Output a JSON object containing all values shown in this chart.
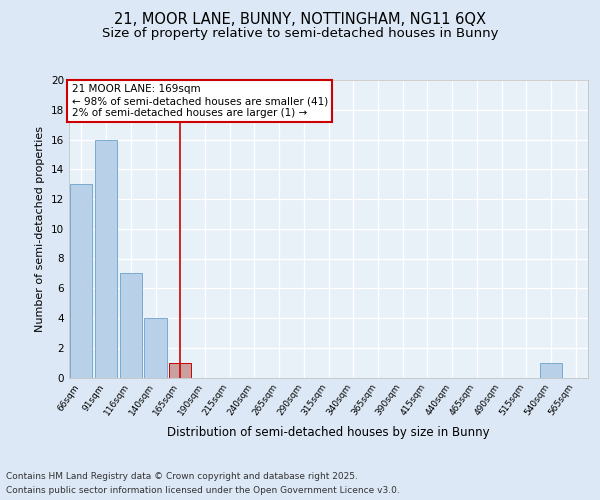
{
  "title1": "21, MOOR LANE, BUNNY, NOTTINGHAM, NG11 6QX",
  "title2": "Size of property relative to semi-detached houses in Bunny",
  "xlabel": "Distribution of semi-detached houses by size in Bunny",
  "ylabel": "Number of semi-detached properties",
  "footer1": "Contains HM Land Registry data © Crown copyright and database right 2025.",
  "footer2": "Contains public sector information licensed under the Open Government Licence v3.0.",
  "bin_labels": [
    "66sqm",
    "91sqm",
    "116sqm",
    "140sqm",
    "165sqm",
    "190sqm",
    "215sqm",
    "240sqm",
    "265sqm",
    "290sqm",
    "315sqm",
    "340sqm",
    "365sqm",
    "390sqm",
    "415sqm",
    "440sqm",
    "465sqm",
    "490sqm",
    "515sqm",
    "540sqm",
    "565sqm"
  ],
  "bar_values": [
    13,
    16,
    7,
    4,
    1,
    0,
    0,
    0,
    0,
    0,
    0,
    0,
    0,
    0,
    0,
    0,
    0,
    0,
    0,
    1,
    0
  ],
  "bar_color": "#b8d0e8",
  "bar_edge_color": "#7aaad0",
  "highlight_bar_index": 4,
  "highlight_bar_color": "#c8a0a0",
  "highlight_bar_edge_color": "#cc0000",
  "vline_x": 4,
  "vline_color": "#cc0000",
  "annotation_text": "21 MOOR LANE: 169sqm\n← 98% of semi-detached houses are smaller (41)\n2% of semi-detached houses are larger (1) →",
  "annotation_box_edge_color": "#cc0000",
  "ylim": [
    0,
    20
  ],
  "yticks": [
    0,
    2,
    4,
    6,
    8,
    10,
    12,
    14,
    16,
    18,
    20
  ],
  "bg_color": "#dce8f5",
  "plot_bg_color": "#e8f0f8",
  "grid_color": "#ffffff",
  "title1_fontsize": 10.5,
  "title2_fontsize": 9.5,
  "xlabel_fontsize": 8.5,
  "ylabel_fontsize": 8,
  "footer_fontsize": 6.5,
  "annot_fontsize": 7.5
}
